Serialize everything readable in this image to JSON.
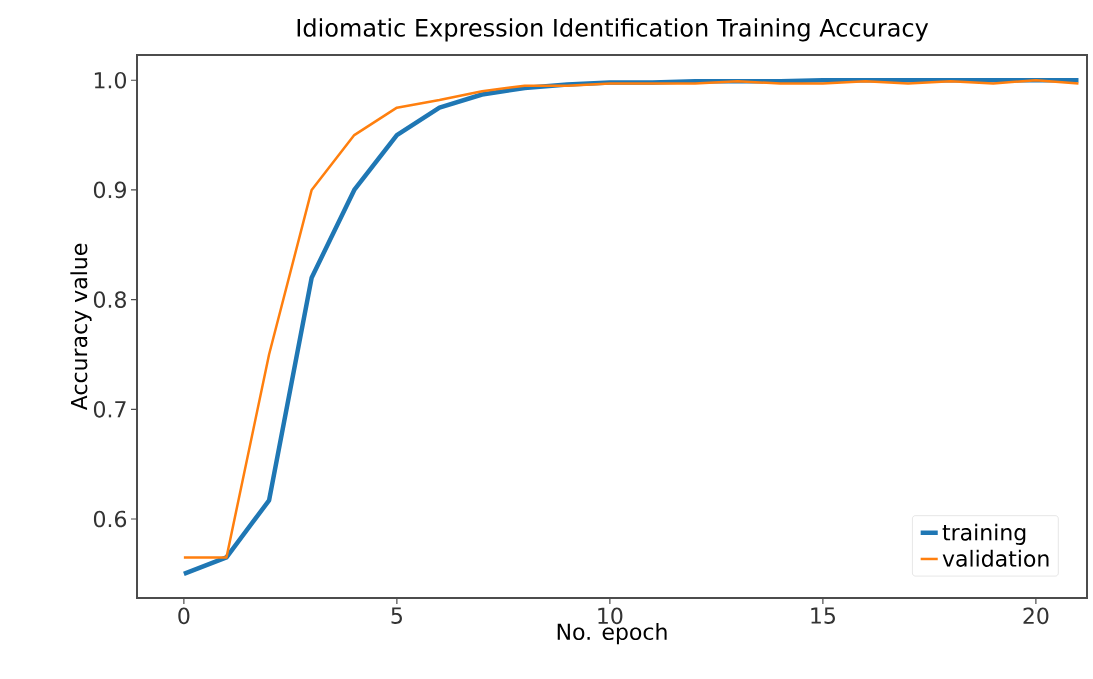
{
  "chart_data": {
    "type": "line",
    "title": "Idiomatic Expression Identification Training Accuracy",
    "xlabel": "No. epoch",
    "ylabel": "Accuracy value",
    "x": [
      0,
      1,
      2,
      3,
      4,
      5,
      6,
      7,
      8,
      9,
      10,
      11,
      12,
      13,
      14,
      15,
      16,
      17,
      18,
      19,
      20,
      21
    ],
    "series": [
      {
        "name": "training",
        "color": "#1f77b4",
        "values": [
          0.55,
          0.565,
          0.617,
          0.82,
          0.9,
          0.95,
          0.975,
          0.987,
          0.993,
          0.996,
          0.998,
          0.998,
          0.999,
          0.999,
          0.999,
          1.0,
          1.0,
          1.0,
          1.0,
          1.0,
          1.0,
          1.0
        ]
      },
      {
        "name": "validation",
        "color": "#ff7f0e",
        "values": [
          0.565,
          0.565,
          0.75,
          0.9,
          0.95,
          0.975,
          0.982,
          0.99,
          0.995,
          0.995,
          0.997,
          0.997,
          0.997,
          0.999,
          0.997,
          0.997,
          0.999,
          0.997,
          0.999,
          0.997,
          1.0,
          0.997
        ]
      }
    ],
    "xlim": [
      -1.1,
      21.2
    ],
    "ylim": [
      0.528,
      1.023
    ],
    "xticks": [
      0,
      5,
      10,
      15,
      20
    ],
    "yticks": [
      {
        "value": 0.6,
        "label": "0.6"
      },
      {
        "value": 0.7,
        "label": "0.7"
      },
      {
        "value": 0.8,
        "label": "0.8"
      },
      {
        "value": 0.9,
        "label": "0.9"
      },
      {
        "value": 1.0,
        "label": "1.0"
      }
    ],
    "legend": "bottom right",
    "grid": false,
    "marker": "none",
    "line_style": "solid"
  }
}
